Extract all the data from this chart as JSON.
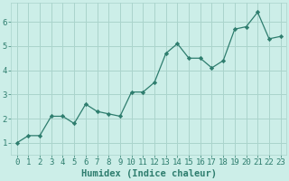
{
  "x": [
    0,
    1,
    2,
    3,
    4,
    5,
    6,
    7,
    8,
    9,
    10,
    11,
    12,
    13,
    14,
    15,
    16,
    17,
    18,
    19,
    20,
    21,
    22,
    23
  ],
  "y": [
    1.0,
    1.3,
    1.3,
    2.1,
    2.1,
    1.8,
    2.6,
    2.3,
    2.2,
    2.1,
    3.1,
    3.1,
    3.5,
    4.7,
    5.1,
    4.5,
    4.5,
    4.1,
    4.4,
    5.7,
    5.8,
    6.4,
    5.3,
    5.4
  ],
  "line_color": "#2e7d6e",
  "marker": "D",
  "marker_size": 2.2,
  "bg_color": "#cceee8",
  "grid_color": "#aad4cc",
  "xlabel": "Humidex (Indice chaleur)",
  "xlim": [
    -0.5,
    23.5
  ],
  "ylim": [
    0.5,
    6.8
  ],
  "xticks": [
    0,
    1,
    2,
    3,
    4,
    5,
    6,
    7,
    8,
    9,
    10,
    11,
    12,
    13,
    14,
    15,
    16,
    17,
    18,
    19,
    20,
    21,
    22,
    23
  ],
  "yticks": [
    1,
    2,
    3,
    4,
    5,
    6
  ],
  "xlabel_fontsize": 7.5,
  "tick_fontsize": 6.5
}
